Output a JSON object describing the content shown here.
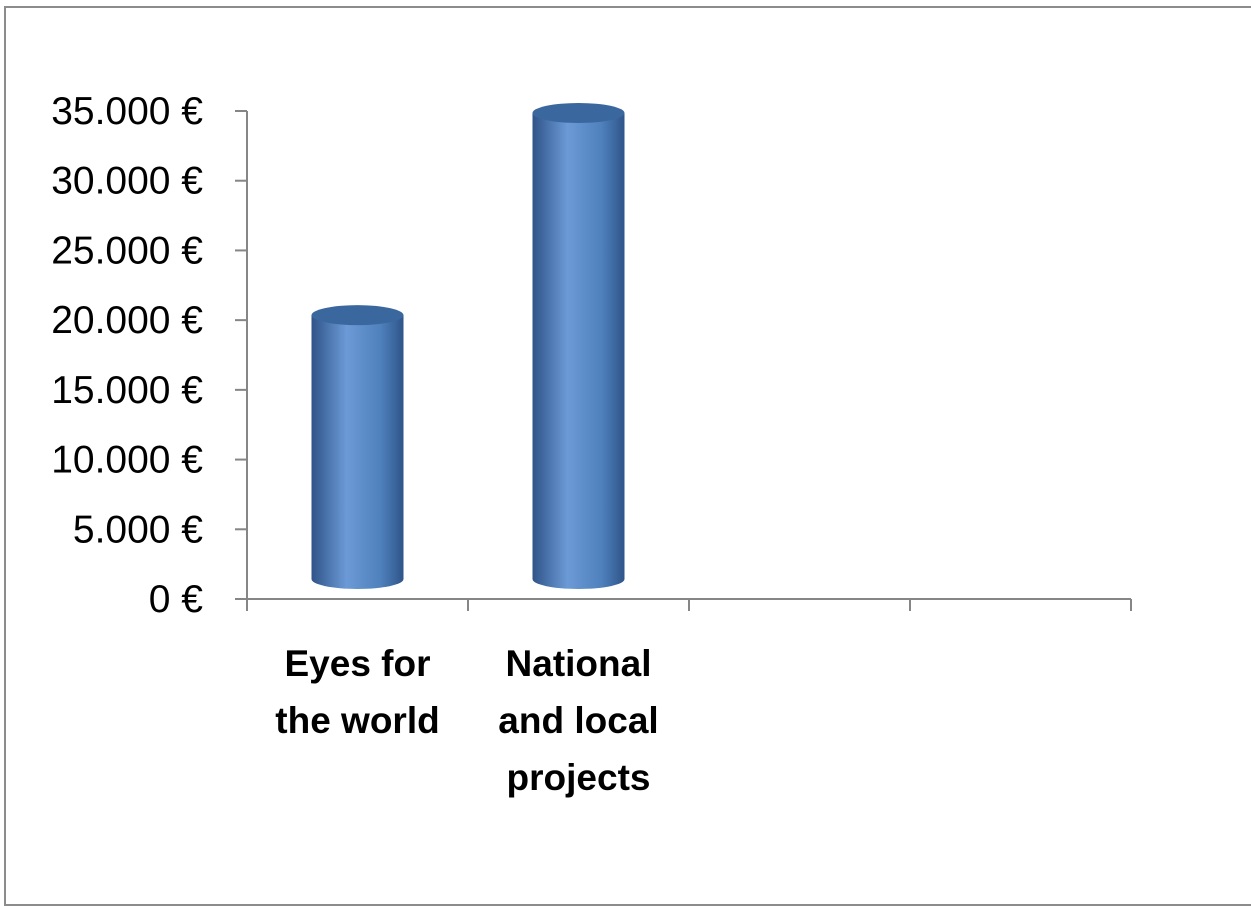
{
  "chart_data": {
    "type": "bar",
    "style": "3d-cylinder",
    "categories": [
      [
        "Eyes for",
        "the world"
      ],
      [
        "National",
        "and local",
        "projects"
      ],
      [],
      []
    ],
    "values": [
      20500,
      35000,
      null,
      null
    ],
    "ylim": [
      0,
      35000
    ],
    "yticks": [
      "0 €",
      "5.000 €",
      "10.000 €",
      "15.000 €",
      "20.000 €",
      "25.000 €",
      "30.000 €",
      "35.000 €"
    ],
    "ytick_values": [
      0,
      5000,
      10000,
      15000,
      20000,
      25000,
      30000,
      35000
    ],
    "grid": false,
    "legend": "none",
    "colors": {
      "bar_body": "#4f81bd",
      "bar_light": "#6c9ad6",
      "bar_dark": "#2f5489",
      "bar_top": "#3b679f",
      "axis": "#868686"
    }
  }
}
